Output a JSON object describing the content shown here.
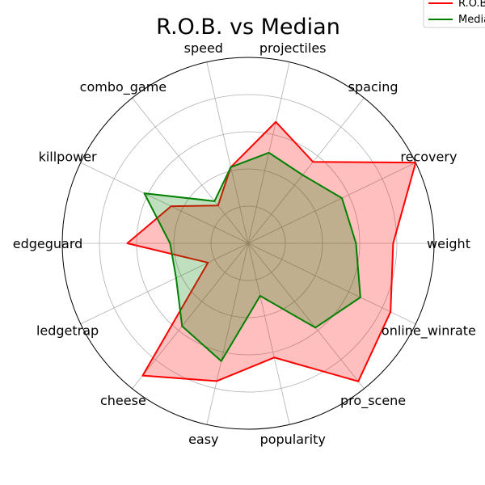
{
  "chart_data": {
    "type": "radar",
    "title": "R.O.B. vs Median",
    "axes": [
      "weight",
      "recovery",
      "spacing",
      "projectiles",
      "speed",
      "combo_game",
      "killpower",
      "edgeguard",
      "ledgetrap",
      "cheese",
      "easy",
      "popularity",
      "pro_scene",
      "online_winrate"
    ],
    "rlim": [
      0,
      1
    ],
    "grid_rings": [
      0.2,
      0.4,
      0.6,
      0.8,
      1.0
    ],
    "grid": true,
    "legend_placement": "top-right",
    "series": [
      {
        "name": "R.O.B.",
        "color": "#ff0000",
        "fill": "#ff0000",
        "fill_alpha": 0.25,
        "values": [
          0.78,
          1.0,
          0.56,
          0.67,
          0.42,
          0.26,
          0.46,
          0.65,
          0.24,
          0.91,
          0.76,
          0.63,
          0.95,
          0.85
        ]
      },
      {
        "name": "Median",
        "color": "#008000",
        "fill": "#008000",
        "fill_alpha": 0.25,
        "values": [
          0.58,
          0.56,
          0.47,
          0.5,
          0.42,
          0.29,
          0.62,
          0.42,
          0.43,
          0.57,
          0.65,
          0.29,
          0.58,
          0.67
        ]
      }
    ]
  }
}
